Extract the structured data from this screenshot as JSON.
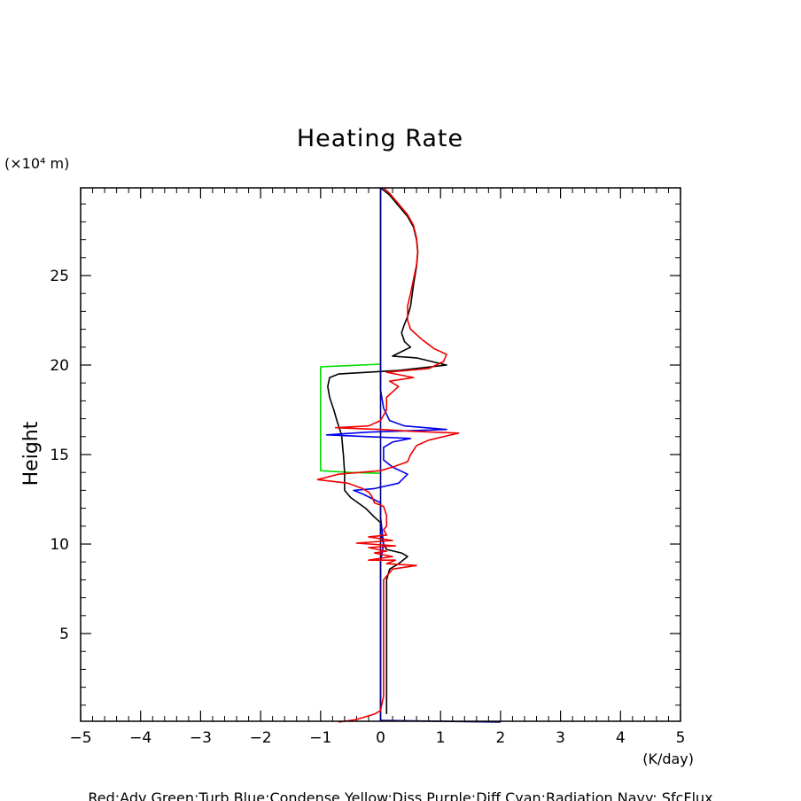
{
  "chart_data": {
    "type": "line",
    "title": "Heating Rate",
    "ylabel": "Height",
    "y_unit": "(×10⁴ m)",
    "x_unit": "(K/day)",
    "xlim": [
      -5,
      5
    ],
    "ylim": [
      0.1,
      29.9
    ],
    "x_ticks": [
      -5,
      -4,
      -3,
      -2,
      -1,
      0,
      1,
      2,
      3,
      4,
      5
    ],
    "x_tick_labels": [
      "−5",
      "−4",
      "−3",
      "−2",
      "−1",
      "0",
      "1",
      "2",
      "3",
      "4",
      "5"
    ],
    "y_ticks": [
      5,
      10,
      15,
      20,
      25
    ],
    "y_tick_labels": [
      "5",
      "10",
      "15",
      "20",
      "25"
    ],
    "legend_text": "Red:Adv  Green:Turb  Blue:Condense  Yellow:Diss  Purple:Diff  Cyan:Radiation  Navy: SfcFlux",
    "grid": false,
    "series": [
      {
        "color": "#00dd00",
        "points": [
          [
            0,
            20.05
          ],
          [
            -1,
            19.9
          ],
          [
            -1,
            19.4
          ],
          [
            -1,
            17
          ],
          [
            -1,
            14.9
          ],
          [
            -1,
            14.1
          ],
          [
            -0.5,
            14
          ],
          [
            0,
            13.95
          ]
        ]
      },
      {
        "color": "#000000",
        "points": [
          [
            0.1,
            0.5
          ],
          [
            0.1,
            2
          ],
          [
            0.1,
            5
          ],
          [
            0.1,
            7
          ],
          [
            0.1,
            8
          ],
          [
            0.15,
            8.6
          ],
          [
            0.3,
            8.9
          ],
          [
            0.45,
            9.3
          ],
          [
            0.35,
            9.5
          ],
          [
            0.1,
            9.7
          ],
          [
            0.05,
            10
          ],
          [
            0,
            10.6
          ],
          [
            0,
            11.2
          ],
          [
            -0.1,
            11.5
          ],
          [
            -0.25,
            12
          ],
          [
            -0.5,
            12.6
          ],
          [
            -0.6,
            13
          ],
          [
            -0.6,
            14
          ],
          [
            -0.62,
            15
          ],
          [
            -0.65,
            16.1
          ],
          [
            -0.72,
            16.8
          ],
          [
            -0.78,
            17.5
          ],
          [
            -0.85,
            18.2
          ],
          [
            -0.88,
            18.8
          ],
          [
            -0.85,
            19.3
          ],
          [
            -0.7,
            19.5
          ],
          [
            -0.2,
            19.6
          ],
          [
            0.3,
            19.7
          ],
          [
            1.1,
            20
          ],
          [
            0.6,
            20.4
          ],
          [
            0.2,
            20.5
          ],
          [
            0.5,
            21
          ],
          [
            0.4,
            21.3
          ],
          [
            0.35,
            21.8
          ],
          [
            0.4,
            22.3
          ],
          [
            0.45,
            22.7
          ],
          [
            0.5,
            23.3
          ],
          [
            0.55,
            24.5
          ],
          [
            0.6,
            25.5
          ],
          [
            0.62,
            26.3
          ],
          [
            0.6,
            27
          ],
          [
            0.55,
            27.7
          ],
          [
            0.45,
            28.3
          ],
          [
            0.3,
            28.9
          ],
          [
            0.15,
            29.5
          ],
          [
            0,
            29.9
          ]
        ]
      },
      {
        "color": "#0000ee",
        "points": [
          [
            0,
            0.1
          ],
          [
            0,
            9
          ],
          [
            0.05,
            10
          ],
          [
            0,
            11.5
          ],
          [
            0,
            12.3
          ],
          [
            -0.3,
            12.8
          ],
          [
            -0.45,
            13
          ],
          [
            -0.1,
            13.1
          ],
          [
            0.3,
            13.4
          ],
          [
            0.45,
            13.9
          ],
          [
            0.2,
            14.3
          ],
          [
            0.05,
            14.7
          ],
          [
            0.05,
            15.4
          ],
          [
            0.2,
            15.7
          ],
          [
            0.5,
            15.9
          ],
          [
            -0.2,
            16
          ],
          [
            -0.9,
            16.1
          ],
          [
            -0.2,
            16.25
          ],
          [
            1.1,
            16.4
          ],
          [
            0.4,
            16.6
          ],
          [
            0.15,
            16.9
          ],
          [
            0.05,
            17.6
          ],
          [
            0,
            18.6
          ],
          [
            0,
            29.9
          ]
        ]
      },
      {
        "color": "#000080",
        "points": [
          [
            0,
            0.15
          ],
          [
            0,
            29.9
          ]
        ]
      },
      {
        "color": "#000080",
        "points": [
          [
            0,
            0.15
          ],
          [
            2,
            0.05
          ]
        ]
      },
      {
        "color": "#ee0000",
        "points": [
          [
            -0.7,
            0.05
          ],
          [
            -0.4,
            0.2
          ],
          [
            -0.1,
            0.5
          ],
          [
            0,
            0.7
          ],
          [
            0.05,
            1.5
          ],
          [
            0.05,
            4
          ],
          [
            0.05,
            6.5
          ],
          [
            0.05,
            8
          ],
          [
            0.2,
            8.6
          ],
          [
            0.6,
            8.8
          ],
          [
            0.1,
            8.9
          ],
          [
            0.25,
            9.1
          ],
          [
            -0.2,
            9.1
          ],
          [
            0.2,
            9.3
          ],
          [
            -0.1,
            9.5
          ],
          [
            0.1,
            9.6
          ],
          [
            -0.2,
            9.8
          ],
          [
            0.25,
            9.9
          ],
          [
            -0.4,
            10.05
          ],
          [
            0.2,
            10.2
          ],
          [
            -0.2,
            10.4
          ],
          [
            0.1,
            10.5
          ],
          [
            0.05,
            10.8
          ],
          [
            0.1,
            11
          ],
          [
            0.1,
            11.6
          ],
          [
            0.05,
            12.1
          ],
          [
            -0.1,
            12.3
          ],
          [
            -0.15,
            12.7
          ],
          [
            -0.2,
            12.9
          ],
          [
            -0.3,
            13.1
          ],
          [
            -0.55,
            13.4
          ],
          [
            -1.05,
            13.6
          ],
          [
            -0.7,
            13.9
          ],
          [
            -0.35,
            14
          ],
          [
            0,
            14.1
          ],
          [
            0.2,
            14.3
          ],
          [
            0.45,
            14.6
          ],
          [
            0.5,
            15
          ],
          [
            0.6,
            15.5
          ],
          [
            0.8,
            15.8
          ],
          [
            1.3,
            16.2
          ],
          [
            0.5,
            16.3
          ],
          [
            0,
            16.4
          ],
          [
            -0.75,
            16.5
          ],
          [
            -0.2,
            16.6
          ],
          [
            0,
            16.9
          ],
          [
            0.1,
            17.5
          ],
          [
            0.1,
            18.2
          ],
          [
            0.3,
            18.8
          ],
          [
            0.15,
            19.1
          ],
          [
            0.55,
            19.3
          ],
          [
            0.1,
            19.6
          ],
          [
            0.8,
            19.8
          ],
          [
            1.05,
            20.2
          ],
          [
            1.1,
            20.6
          ],
          [
            0.9,
            20.9
          ],
          [
            0.7,
            21.4
          ],
          [
            0.5,
            22
          ],
          [
            0.45,
            22.5
          ],
          [
            0.45,
            23.3
          ],
          [
            0.5,
            24
          ],
          [
            0.55,
            24.8
          ],
          [
            0.6,
            25.6
          ],
          [
            0.62,
            26.4
          ],
          [
            0.6,
            27.1
          ],
          [
            0.55,
            27.8
          ],
          [
            0.45,
            28.4
          ],
          [
            0.3,
            29
          ],
          [
            0.15,
            29.6
          ],
          [
            0.05,
            29.9
          ]
        ]
      }
    ]
  }
}
